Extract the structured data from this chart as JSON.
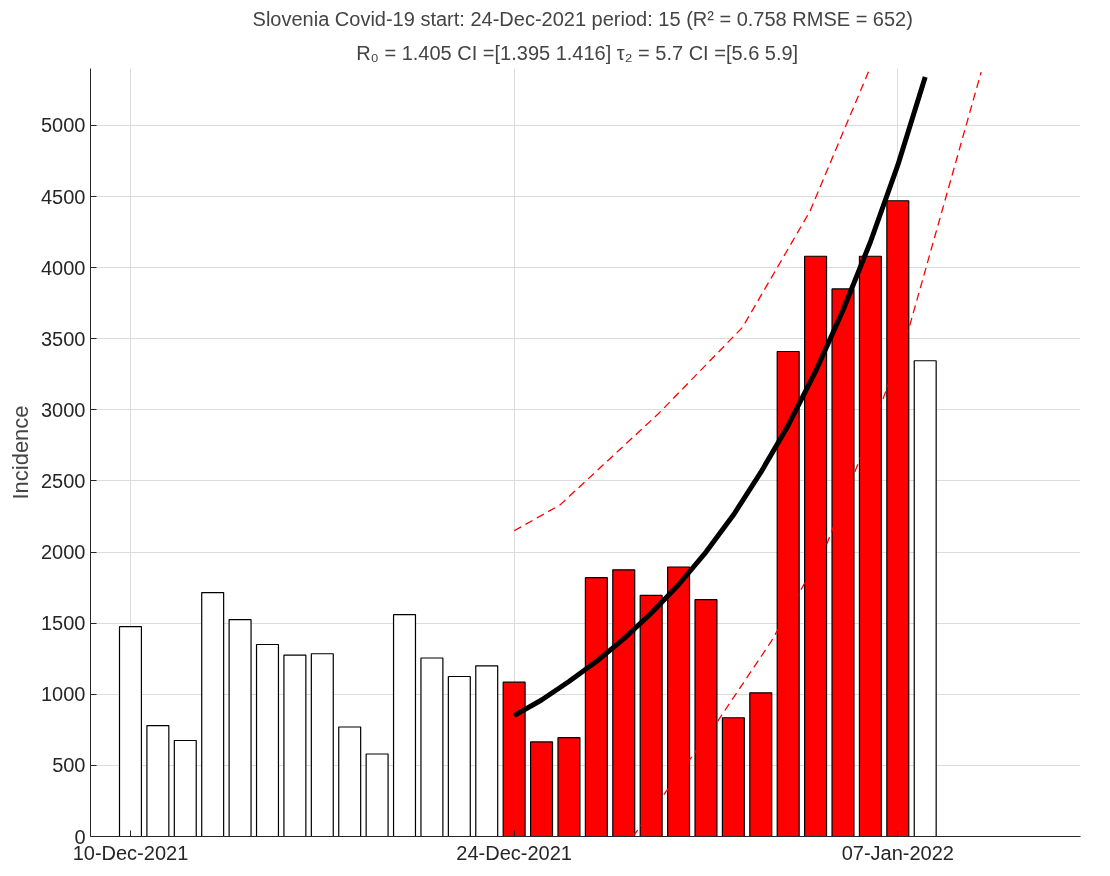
{
  "chart_data": {
    "type": "bar",
    "title": "Slovenia Covid-19 start: 24-Dec-2021 period: 15 (R² = 0.758  RMSE = 652)",
    "subtitle": "R₀ = 1.405  CI =[1.395 1.416]  τ₂ = 5.7  CI =[5.6 5.9]",
    "ylabel": "Incidence",
    "x": [
      "2021-12-10",
      "2021-12-11",
      "2021-12-12",
      "2021-12-13",
      "2021-12-14",
      "2021-12-15",
      "2021-12-16",
      "2021-12-17",
      "2021-12-18",
      "2021-12-19",
      "2021-12-20",
      "2021-12-21",
      "2021-12-22",
      "2021-12-23",
      "2021-12-24",
      "2021-12-25",
      "2021-12-26",
      "2021-12-27",
      "2021-12-28",
      "2021-12-29",
      "2021-12-30",
      "2021-12-31",
      "2022-01-01",
      "2022-01-02",
      "2022-01-03",
      "2022-01-04",
      "2022-01-05",
      "2022-01-06",
      "2022-01-07",
      "2022-01-08"
    ],
    "series": [
      {
        "color": "#ffffff",
        "values": [
          1475,
          780,
          675,
          1715,
          1525,
          1350,
          1275,
          1285,
          770,
          580,
          1560,
          1255,
          1125,
          1200,
          null,
          null,
          null,
          null,
          null,
          null,
          null,
          null,
          null,
          null,
          null,
          null,
          null,
          null,
          null,
          3345
        ]
      },
      {
        "color": "#ff0000",
        "values": [
          null,
          null,
          null,
          null,
          null,
          null,
          null,
          null,
          null,
          null,
          null,
          null,
          null,
          null,
          1085,
          665,
          695,
          1820,
          1875,
          1695,
          1895,
          1665,
          835,
          1010,
          3410,
          4080,
          3850,
          4080,
          4470,
          null
        ]
      },
      {
        "type": "line",
        "color": "#000000",
        "x": [
          "2021-12-24",
          "2021-12-25",
          "2021-12-26",
          "2021-12-27",
          "2021-12-28",
          "2021-12-29",
          "2021-12-30",
          "2021-12-31",
          "2022-01-01",
          "2022-01-02",
          "2022-01-03",
          "2022-01-04",
          "2022-01-05",
          "2022-01-06",
          "2022-01-07",
          "2022-01-08"
        ],
        "values": [
          850,
          960,
          1090,
          1230,
          1390,
          1570,
          1770,
          2000,
          2260,
          2560,
          2890,
          3270,
          3700,
          4180,
          4720,
          5340
        ]
      },
      {
        "type": "line",
        "color": "#ff0000",
        "line_style": "dashed",
        "x": [
          "2021-12-24T00:00",
          "2021-12-25T16:00",
          "2021-12-29T06:00",
          "2022-01-01T08:00",
          "2022-01-03T19:00",
          "2022-01-05T23:00"
        ],
        "values": [
          2150,
          2330,
          2970,
          3580,
          4395,
          5390
        ]
      },
      {
        "type": "line",
        "color": "#ff0000",
        "line_style": "dashed",
        "x": [
          "2021-12-28T08:00",
          "2021-12-31T06:00",
          "2022-01-02T09:00",
          "2022-01-04T09:00",
          "2022-01-06T08:00",
          "2022-01-07T10:00",
          "2022-01-10T01:00"
        ],
        "values": [
          0,
          760,
          1370,
          2040,
          3010,
          3580,
          5375
        ]
      }
    ],
    "xlim": [
      "2021-12-08T13:00",
      "2022-01-13T16:00"
    ],
    "xticks": [
      {
        "value": "2021-12-10",
        "label": "10-Dec-2021"
      },
      {
        "value": "2021-12-24",
        "label": "24-Dec-2021"
      },
      {
        "value": "2022-01-07",
        "label": "07-Jan-2022"
      }
    ],
    "ylim": [
      0,
      5400
    ],
    "yticks": [
      0,
      500,
      1000,
      1500,
      2000,
      2500,
      3000,
      3500,
      4000,
      4500,
      5000
    ],
    "grid": true
  }
}
